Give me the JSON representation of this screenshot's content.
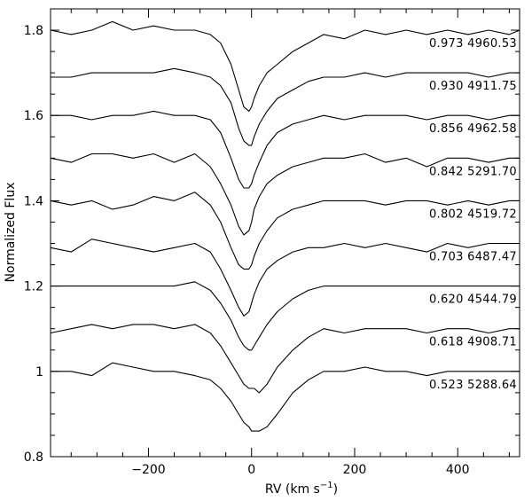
{
  "chart_data": {
    "type": "line",
    "xlabel": "RV (km s",
    "xlabel_sup": "−1",
    "xlabel_close": ")",
    "ylabel": "Normalized Flux",
    "xlim": [
      -390,
      520
    ],
    "ylim": [
      0.8,
      1.85
    ],
    "xticks": [
      -200,
      0,
      200,
      400
    ],
    "xtick_labels": [
      "−200",
      "0",
      "200",
      "400"
    ],
    "yticks": [
      0.8,
      1,
      1.2,
      1.4,
      1.6,
      1.8
    ],
    "ytick_labels": [
      "0.8",
      "1",
      "1.2",
      "1.4",
      "1.6",
      "1.8"
    ],
    "grid": false,
    "series": [
      {
        "label": "0.973 4960.53",
        "x": [
          -390,
          -350,
          -310,
          -270,
          -230,
          -190,
          -150,
          -110,
          -80,
          -60,
          -40,
          -25,
          -15,
          -5,
          0,
          5,
          15,
          30,
          50,
          80,
          110,
          140,
          180,
          220,
          260,
          300,
          340,
          380,
          420,
          460,
          500,
          520
        ],
        "y": [
          1.8,
          1.79,
          1.8,
          1.82,
          1.8,
          1.81,
          1.8,
          1.8,
          1.79,
          1.77,
          1.72,
          1.66,
          1.62,
          1.61,
          1.62,
          1.64,
          1.67,
          1.7,
          1.72,
          1.75,
          1.77,
          1.79,
          1.78,
          1.8,
          1.79,
          1.8,
          1.79,
          1.8,
          1.79,
          1.8,
          1.79,
          1.8
        ]
      },
      {
        "label": "0.930 4911.75",
        "x": [
          -390,
          -350,
          -310,
          -270,
          -230,
          -190,
          -150,
          -110,
          -80,
          -60,
          -40,
          -25,
          -15,
          -5,
          0,
          5,
          15,
          30,
          50,
          80,
          110,
          140,
          180,
          220,
          260,
          300,
          340,
          380,
          420,
          460,
          500,
          520
        ],
        "y": [
          1.69,
          1.69,
          1.7,
          1.7,
          1.7,
          1.7,
          1.71,
          1.7,
          1.69,
          1.67,
          1.63,
          1.57,
          1.54,
          1.53,
          1.53,
          1.55,
          1.58,
          1.61,
          1.64,
          1.66,
          1.68,
          1.69,
          1.69,
          1.7,
          1.69,
          1.7,
          1.7,
          1.7,
          1.7,
          1.69,
          1.7,
          1.7
        ]
      },
      {
        "label": "0.856 4962.58",
        "x": [
          -390,
          -350,
          -310,
          -270,
          -230,
          -190,
          -150,
          -110,
          -80,
          -60,
          -40,
          -25,
          -15,
          -5,
          0,
          5,
          15,
          30,
          50,
          80,
          110,
          140,
          180,
          220,
          260,
          300,
          340,
          380,
          420,
          460,
          500,
          520
        ],
        "y": [
          1.6,
          1.6,
          1.59,
          1.6,
          1.6,
          1.61,
          1.6,
          1.6,
          1.59,
          1.56,
          1.5,
          1.45,
          1.43,
          1.43,
          1.44,
          1.46,
          1.49,
          1.53,
          1.56,
          1.58,
          1.59,
          1.6,
          1.59,
          1.6,
          1.6,
          1.6,
          1.59,
          1.6,
          1.6,
          1.59,
          1.6,
          1.6
        ]
      },
      {
        "label": "0.842 5291.70",
        "x": [
          -390,
          -350,
          -310,
          -270,
          -230,
          -190,
          -150,
          -110,
          -80,
          -60,
          -40,
          -25,
          -15,
          -5,
          0,
          5,
          15,
          30,
          50,
          80,
          110,
          140,
          180,
          220,
          260,
          300,
          340,
          380,
          420,
          460,
          500,
          520
        ],
        "y": [
          1.5,
          1.49,
          1.51,
          1.51,
          1.5,
          1.51,
          1.49,
          1.51,
          1.48,
          1.44,
          1.39,
          1.34,
          1.32,
          1.33,
          1.35,
          1.38,
          1.41,
          1.44,
          1.46,
          1.48,
          1.49,
          1.5,
          1.5,
          1.51,
          1.49,
          1.5,
          1.48,
          1.5,
          1.5,
          1.49,
          1.5,
          1.5
        ]
      },
      {
        "label": "0.802 4519.72",
        "x": [
          -390,
          -350,
          -310,
          -270,
          -230,
          -190,
          -150,
          -110,
          -80,
          -60,
          -40,
          -25,
          -15,
          -5,
          0,
          5,
          15,
          30,
          50,
          80,
          110,
          140,
          180,
          220,
          260,
          300,
          340,
          380,
          420,
          460,
          500,
          520
        ],
        "y": [
          1.4,
          1.39,
          1.4,
          1.38,
          1.39,
          1.41,
          1.4,
          1.42,
          1.39,
          1.35,
          1.29,
          1.25,
          1.24,
          1.24,
          1.25,
          1.27,
          1.3,
          1.33,
          1.36,
          1.38,
          1.39,
          1.4,
          1.4,
          1.4,
          1.39,
          1.4,
          1.4,
          1.39,
          1.4,
          1.39,
          1.4,
          1.4
        ]
      },
      {
        "label": "0.703 6487.47",
        "x": [
          -390,
          -350,
          -310,
          -270,
          -230,
          -190,
          -150,
          -110,
          -80,
          -60,
          -40,
          -25,
          -15,
          -5,
          0,
          5,
          15,
          30,
          50,
          80,
          110,
          140,
          180,
          220,
          260,
          300,
          340,
          380,
          420,
          460,
          500,
          520
        ],
        "y": [
          1.29,
          1.28,
          1.31,
          1.3,
          1.29,
          1.28,
          1.29,
          1.3,
          1.28,
          1.24,
          1.19,
          1.15,
          1.13,
          1.14,
          1.16,
          1.18,
          1.21,
          1.24,
          1.26,
          1.28,
          1.29,
          1.29,
          1.3,
          1.29,
          1.3,
          1.29,
          1.28,
          1.3,
          1.29,
          1.3,
          1.3,
          1.3
        ]
      },
      {
        "label": "0.620 4544.79",
        "x": [
          -390,
          -350,
          -310,
          -270,
          -230,
          -190,
          -150,
          -110,
          -80,
          -60,
          -40,
          -25,
          -15,
          -5,
          0,
          5,
          15,
          30,
          50,
          80,
          110,
          140,
          180,
          220,
          260,
          300,
          340,
          380,
          420,
          460,
          500,
          520
        ],
        "y": [
          1.2,
          1.2,
          1.2,
          1.2,
          1.2,
          1.2,
          1.2,
          1.21,
          1.19,
          1.16,
          1.12,
          1.08,
          1.06,
          1.05,
          1.05,
          1.06,
          1.08,
          1.11,
          1.14,
          1.17,
          1.19,
          1.2,
          1.2,
          1.2,
          1.2,
          1.2,
          1.2,
          1.2,
          1.2,
          1.2,
          1.2,
          1.2
        ]
      },
      {
        "label": "0.618 4908.71",
        "x": [
          -390,
          -350,
          -310,
          -270,
          -230,
          -190,
          -150,
          -110,
          -80,
          -60,
          -40,
          -25,
          -15,
          -5,
          0,
          5,
          15,
          30,
          50,
          80,
          110,
          140,
          180,
          220,
          260,
          300,
          340,
          380,
          420,
          460,
          500,
          520
        ],
        "y": [
          1.09,
          1.1,
          1.11,
          1.1,
          1.11,
          1.11,
          1.1,
          1.11,
          1.09,
          1.06,
          1.02,
          0.99,
          0.97,
          0.96,
          0.96,
          0.96,
          0.95,
          0.97,
          1.01,
          1.05,
          1.08,
          1.1,
          1.09,
          1.1,
          1.1,
          1.1,
          1.09,
          1.1,
          1.1,
          1.09,
          1.1,
          1.1
        ]
      },
      {
        "label": "0.523 5288.64",
        "x": [
          -390,
          -350,
          -310,
          -270,
          -230,
          -190,
          -150,
          -110,
          -80,
          -60,
          -40,
          -25,
          -15,
          -5,
          0,
          5,
          15,
          30,
          50,
          80,
          110,
          140,
          180,
          220,
          260,
          300,
          340,
          380,
          420,
          460,
          500,
          520
        ],
        "y": [
          1.0,
          1.0,
          0.99,
          1.02,
          1.01,
          1.0,
          1.0,
          0.99,
          0.98,
          0.96,
          0.93,
          0.9,
          0.88,
          0.87,
          0.86,
          0.86,
          0.86,
          0.87,
          0.9,
          0.95,
          0.98,
          1.0,
          1.0,
          1.01,
          1.0,
          1.0,
          0.99,
          1.0,
          1.0,
          1.0,
          1.0,
          1.0
        ]
      }
    ]
  }
}
